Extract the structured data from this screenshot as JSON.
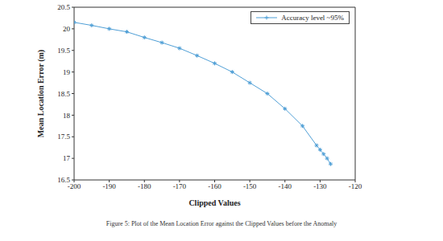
{
  "chart_data": {
    "type": "line",
    "caption": "Figure 5: Plot of the Mean Location Error against the Clipped Values before the Anomaly",
    "x_label": "Clipped Values",
    "y_label": "Mean Location Error (m)",
    "x": [
      -200,
      -195,
      -190,
      -185,
      -180,
      -175,
      -170,
      -165,
      -160,
      -155,
      -150,
      -145,
      -140,
      -135,
      -131,
      -130,
      -129,
      -128,
      -127
    ],
    "series": [
      {
        "name": "Accuracy level ~95%",
        "color": "#4f9fd6",
        "marker": "asterisk",
        "values": [
          20.15,
          20.08,
          20.0,
          19.93,
          19.8,
          19.68,
          19.55,
          19.38,
          19.2,
          19.0,
          18.75,
          18.5,
          18.15,
          17.75,
          17.3,
          17.2,
          17.1,
          17.0,
          16.87
        ]
      }
    ],
    "xlim": [
      -200,
      -120
    ],
    "xticks": [
      -200,
      -190,
      -180,
      -170,
      -160,
      -150,
      -140,
      -130,
      -120
    ],
    "ylim": [
      16.5,
      20.5
    ],
    "yticks": [
      16.5,
      17,
      17.5,
      18,
      18.5,
      19,
      19.5,
      20,
      20.5
    ],
    "grid": false,
    "legend": "top-right"
  }
}
